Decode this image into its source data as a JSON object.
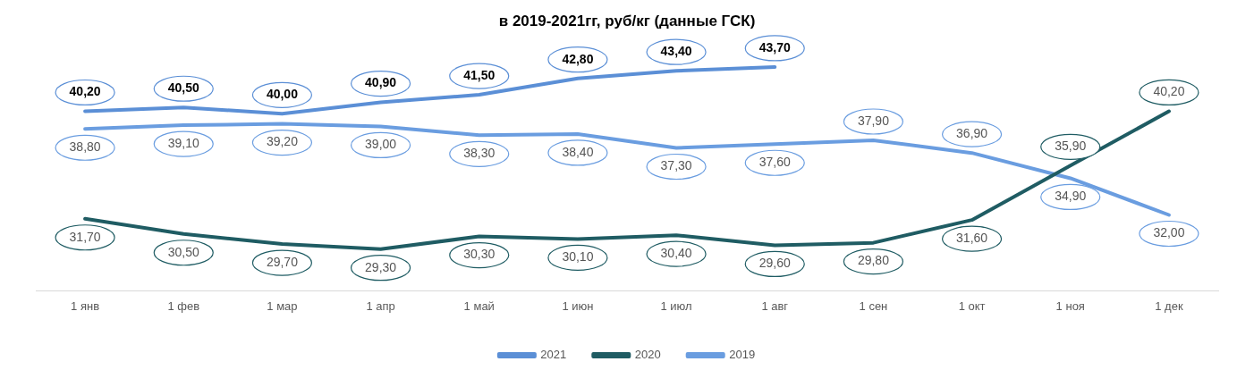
{
  "chart_data": {
    "type": "line",
    "title": "в 2019-2021гг, руб/кг (данные ГСК)",
    "categories": [
      "1 янв",
      "1 фев",
      "1 мар",
      "1 апр",
      "1 май",
      "1 июн",
      "1 июл",
      "1 авг",
      "1 сен",
      "1 окт",
      "1 ноя",
      "1 дек"
    ],
    "series": [
      {
        "name": "2021",
        "color": "#5b8fd6",
        "values": [
          40.2,
          40.5,
          40.0,
          40.9,
          41.5,
          42.8,
          43.4,
          43.7,
          null,
          null,
          null,
          null
        ],
        "value_labels": [
          "40,20",
          "40,50",
          "40,00",
          "40,90",
          "41,50",
          "42,80",
          "43,40",
          "43,70",
          null,
          null,
          null,
          null
        ]
      },
      {
        "name": "2020",
        "color": "#1f5c63",
        "values": [
          31.7,
          30.5,
          29.7,
          29.3,
          30.3,
          30.1,
          30.4,
          29.6,
          29.8,
          31.6,
          35.9,
          40.2
        ],
        "value_labels": [
          "31,70",
          "30,50",
          "29,70",
          "29,30",
          "30,30",
          "30,10",
          "30,40",
          "29,60",
          "29,80",
          "31,60",
          "35,90",
          "40,20"
        ]
      },
      {
        "name": "2019",
        "color": "#6a9de0",
        "values": [
          38.8,
          39.1,
          39.2,
          39.0,
          38.3,
          38.4,
          37.3,
          37.6,
          37.9,
          36.9,
          34.9,
          32.0
        ],
        "value_labels": [
          "38,80",
          "39,10",
          "39,20",
          "39,00",
          "38,30",
          "38,40",
          "37,30",
          "37,60",
          "37,90",
          "36,90",
          "34,90",
          "32,00"
        ]
      }
    ],
    "legend": "bottom",
    "grid": false,
    "marker": "none",
    "line_style": "solid"
  }
}
